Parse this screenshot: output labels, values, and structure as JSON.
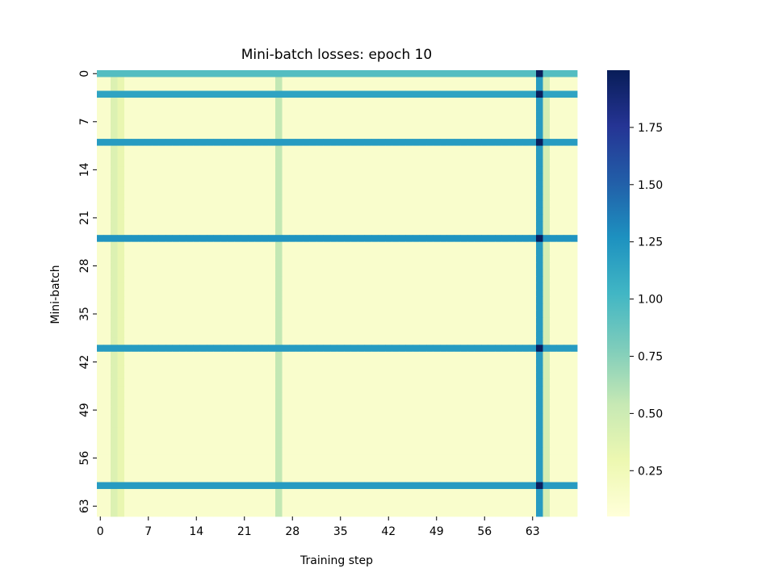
{
  "chart_data": {
    "type": "heatmap",
    "title": "Mini-batch losses: epoch 10",
    "xlabel": "Training step",
    "ylabel": "Mini-batch",
    "n_cols": 70,
    "n_rows": 65,
    "xticks": [
      0,
      7,
      14,
      21,
      28,
      35,
      42,
      49,
      56,
      63
    ],
    "yticks": [
      0,
      7,
      14,
      21,
      28,
      35,
      42,
      49,
      56,
      63
    ],
    "colormap": "YlGnBu",
    "colormap_stops": [
      "#ffffd9",
      "#edf8b1",
      "#c7e9b4",
      "#7fcdbb",
      "#41b6c4",
      "#1d91c0",
      "#225ea8",
      "#253494",
      "#081d58"
    ],
    "vmin": 0.05,
    "vmax": 2.0,
    "colorbar_ticks": [
      0.25,
      0.5,
      0.75,
      1.0,
      1.25,
      1.5,
      1.75
    ],
    "colorbar_tick_labels": [
      "0.25",
      "0.50",
      "0.75",
      "1.00",
      "1.25",
      "1.50",
      "1.75"
    ],
    "baseline_loss": 0.13,
    "high_loss_rows": [
      {
        "row": 0,
        "loss": 0.95
      },
      {
        "row": 3,
        "loss": 1.15
      },
      {
        "row": 10,
        "loss": 1.2
      },
      {
        "row": 24,
        "loss": 1.25
      },
      {
        "row": 40,
        "loss": 1.2
      },
      {
        "row": 60,
        "loss": 1.2
      }
    ],
    "high_loss_columns": [
      {
        "col": 2,
        "loss": 0.4
      },
      {
        "col": 3,
        "loss": 0.32
      },
      {
        "col": 26,
        "loss": 0.55
      },
      {
        "col": 64,
        "loss": 1.2
      },
      {
        "col": 65,
        "loss": 0.45
      }
    ],
    "peak_value": 1.98
  }
}
